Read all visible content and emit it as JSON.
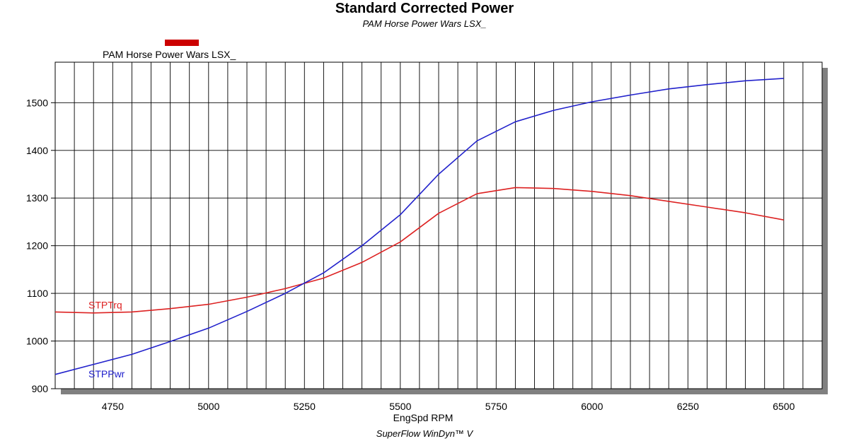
{
  "header": {
    "title": "Standard Corrected Power",
    "subtitle": "PAM Horse Power Wars LSX_"
  },
  "legend": {
    "label": "PAM Horse Power Wars LSX_",
    "color": "#cc0000"
  },
  "footer": {
    "text": "SuperFlow WinDyn™ V"
  },
  "colors": {
    "grid": "#000000",
    "shadow": "#808080",
    "torque": "#dd2222",
    "power": "#2222cc"
  },
  "chart_data": {
    "type": "line",
    "title": "Standard Corrected Power",
    "subtitle": "PAM Horse Power Wars LSX_",
    "xlabel": "EngSpd RPM",
    "ylabel": "",
    "xlim": [
      4600,
      6600
    ],
    "ylim": [
      900,
      1585
    ],
    "x_ticks": [
      "4750",
      "5000",
      "5250",
      "5500",
      "5750",
      "6000",
      "6250",
      "6500"
    ],
    "y_ticks": [
      "900",
      "1000",
      "1100",
      "1200",
      "1300",
      "1400",
      "1500"
    ],
    "grid": true,
    "legend_position": "top-left",
    "series": [
      {
        "name": "STPTrq",
        "color": "#dd2222",
        "x": [
          4600,
          4700,
          4800,
          4900,
          5000,
          5100,
          5200,
          5300,
          5400,
          5500,
          5600,
          5700,
          5800,
          5900,
          6000,
          6100,
          6200,
          6300,
          6400,
          6500
        ],
        "values": [
          1061,
          1059,
          1061,
          1068,
          1077,
          1092,
          1110,
          1132,
          1165,
          1208,
          1268,
          1309,
          1322,
          1320,
          1314,
          1305,
          1293,
          1281,
          1269,
          1254
        ]
      },
      {
        "name": "STPPwr",
        "color": "#2222cc",
        "x": [
          4600,
          4700,
          4800,
          4900,
          5000,
          5100,
          5200,
          5300,
          5400,
          5500,
          5600,
          5700,
          5800,
          5900,
          6000,
          6100,
          6200,
          6300,
          6400,
          6500
        ],
        "values": [
          930,
          951,
          972,
          999,
          1027,
          1062,
          1100,
          1143,
          1200,
          1265,
          1350,
          1420,
          1460,
          1484,
          1502,
          1516,
          1529,
          1538,
          1546,
          1551
        ]
      }
    ]
  }
}
